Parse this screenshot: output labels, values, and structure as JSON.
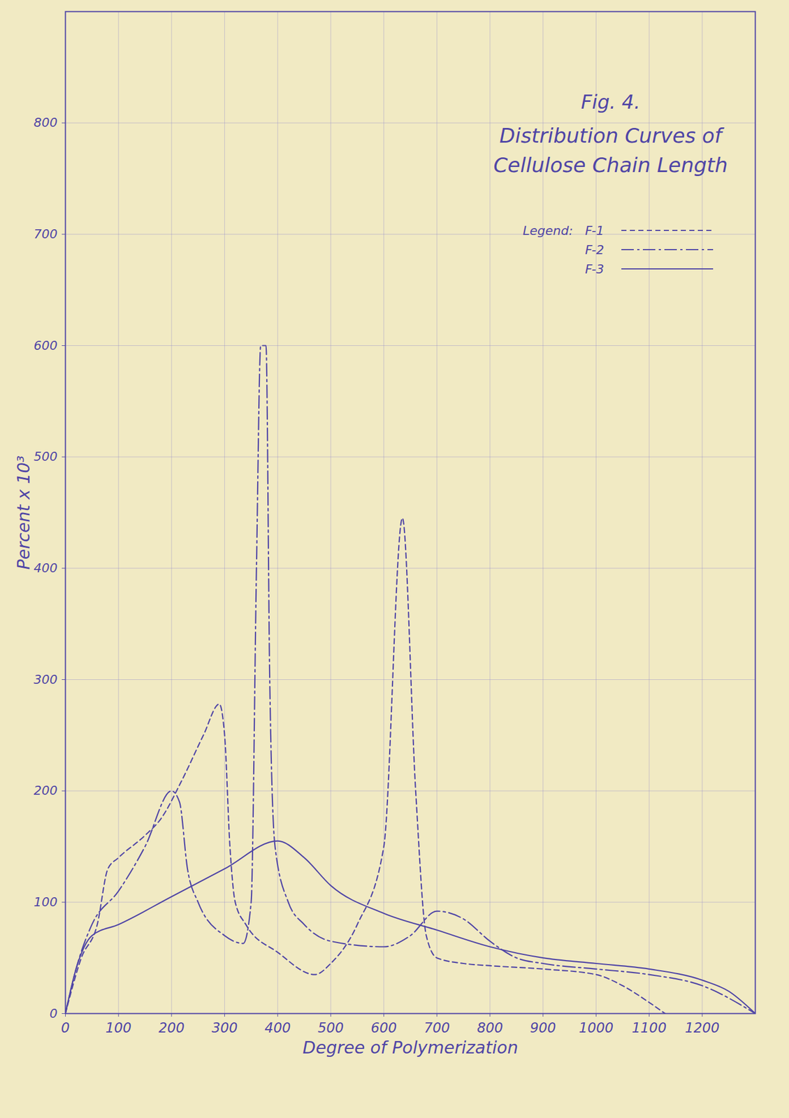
{
  "chart_data": {
    "type": "line",
    "title": "Fig. 4.",
    "subtitle": "Distribution Curves of Cellulose Chain Length",
    "x_label": "Degree of Polymerization",
    "y_label": "Percent x 10³",
    "legend_title": "Legend:",
    "legend": "top-right",
    "grid": true,
    "xlim": [
      0,
      1300
    ],
    "xticks": [
      0,
      100,
      200,
      300,
      400,
      500,
      600,
      700,
      800,
      900,
      1000,
      1100,
      1200
    ],
    "ylim": [
      0,
      900
    ],
    "yticks": [
      0,
      100,
      200,
      300,
      400,
      500,
      600,
      700,
      800
    ],
    "series": [
      {
        "name": "F-1",
        "color": "#4f45a6",
        "line_style": "dashed",
        "x": [
          0,
          30,
          60,
          80,
          100,
          150,
          180,
          220,
          260,
          290,
          300,
          310,
          320,
          340,
          400,
          470,
          500,
          550,
          600,
          635,
          660,
          680,
          700,
          750,
          800,
          900,
          1000,
          1050,
          1100,
          1130
        ],
        "values": [
          0,
          50,
          80,
          130,
          140,
          160,
          175,
          210,
          250,
          278,
          250,
          150,
          100,
          80,
          55,
          35,
          45,
          80,
          150,
          445,
          200,
          70,
          50,
          45,
          43,
          40,
          35,
          25,
          10,
          0
        ]
      },
      {
        "name": "F-2",
        "color": "#4f45a6",
        "line_style": "dashdot",
        "x": [
          0,
          20,
          50,
          100,
          150,
          200,
          215,
          230,
          250,
          300,
          335,
          350,
          360,
          368,
          378,
          385,
          395,
          420,
          450,
          500,
          600,
          650,
          700,
          750,
          800,
          850,
          900,
          1000,
          1100,
          1200,
          1300
        ],
        "values": [
          0,
          40,
          80,
          110,
          150,
          200,
          190,
          130,
          100,
          70,
          63,
          100,
          400,
          600,
          600,
          300,
          150,
          100,
          80,
          65,
          60,
          70,
          92,
          85,
          65,
          50,
          45,
          40,
          35,
          25,
          0
        ]
      },
      {
        "name": "F-3",
        "color": "#4f45a6",
        "line_style": "solid",
        "x": [
          0,
          20,
          50,
          100,
          200,
          300,
          400,
          450,
          500,
          600,
          700,
          800,
          900,
          1000,
          1100,
          1200,
          1250,
          1300
        ],
        "values": [
          0,
          40,
          70,
          80,
          105,
          130,
          155,
          140,
          115,
          90,
          75,
          60,
          50,
          45,
          40,
          30,
          20,
          0
        ]
      }
    ]
  }
}
